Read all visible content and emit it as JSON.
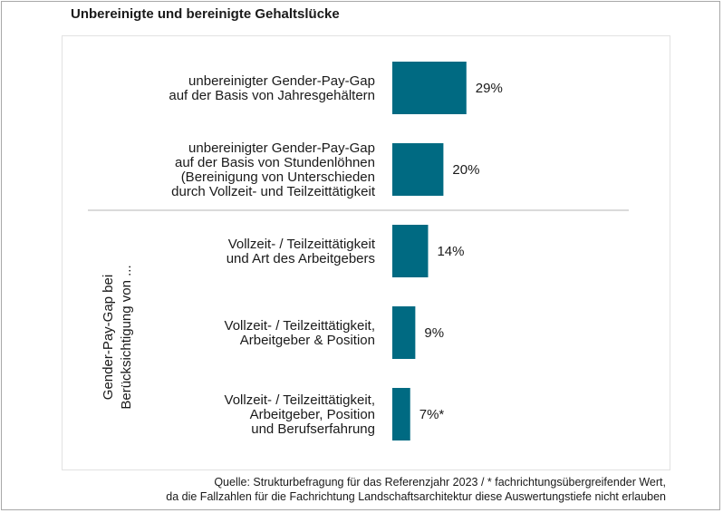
{
  "title": "Unbereinigte und bereinigte Gehaltslücke",
  "source_lines": [
    "Quelle: Strukturbefragung für das Referenzjahr 2023 / * fachrichtungsübergreifender Wert,",
    "da die Fallzahlen für die Fachrichtung Landschaftsarchitektur diese Auswertungstiefe nicht erlauben"
  ],
  "group_label_lines": [
    "Gender-Pay-Gap bei",
    "Berücksichtigung von ..."
  ],
  "colors": {
    "bar": "#006a82",
    "separator": "#b5b5b5"
  },
  "chart_data": {
    "type": "bar",
    "orientation": "horizontal",
    "grid": false,
    "xlim": [
      0,
      100
    ],
    "categories": [
      [
        "unbereinigter Gender-Pay-Gap",
        "auf der Basis von Jahresgehältern"
      ],
      [
        "unbereinigter Gender-Pay-Gap",
        "auf der Basis von Stundenlöhnen",
        "(Bereinigung von Unterschieden",
        "durch Vollzeit- und Teilzeittätigkeit"
      ],
      [
        "Vollzeit- / Teilzeittätigkeit",
        "und Art des Arbeitgebers"
      ],
      [
        "Vollzeit- / Teilzeittätigkeit,",
        "Arbeitgeber & Position"
      ],
      [
        "Vollzeit- / Teilzeittätigkeit,",
        "Arbeitgeber, Position",
        "und Berufserfahrung"
      ]
    ],
    "values": [
      29,
      20,
      14,
      9,
      7
    ],
    "value_labels": [
      "29%",
      "20%",
      "14%",
      "9%",
      "7%*"
    ]
  }
}
